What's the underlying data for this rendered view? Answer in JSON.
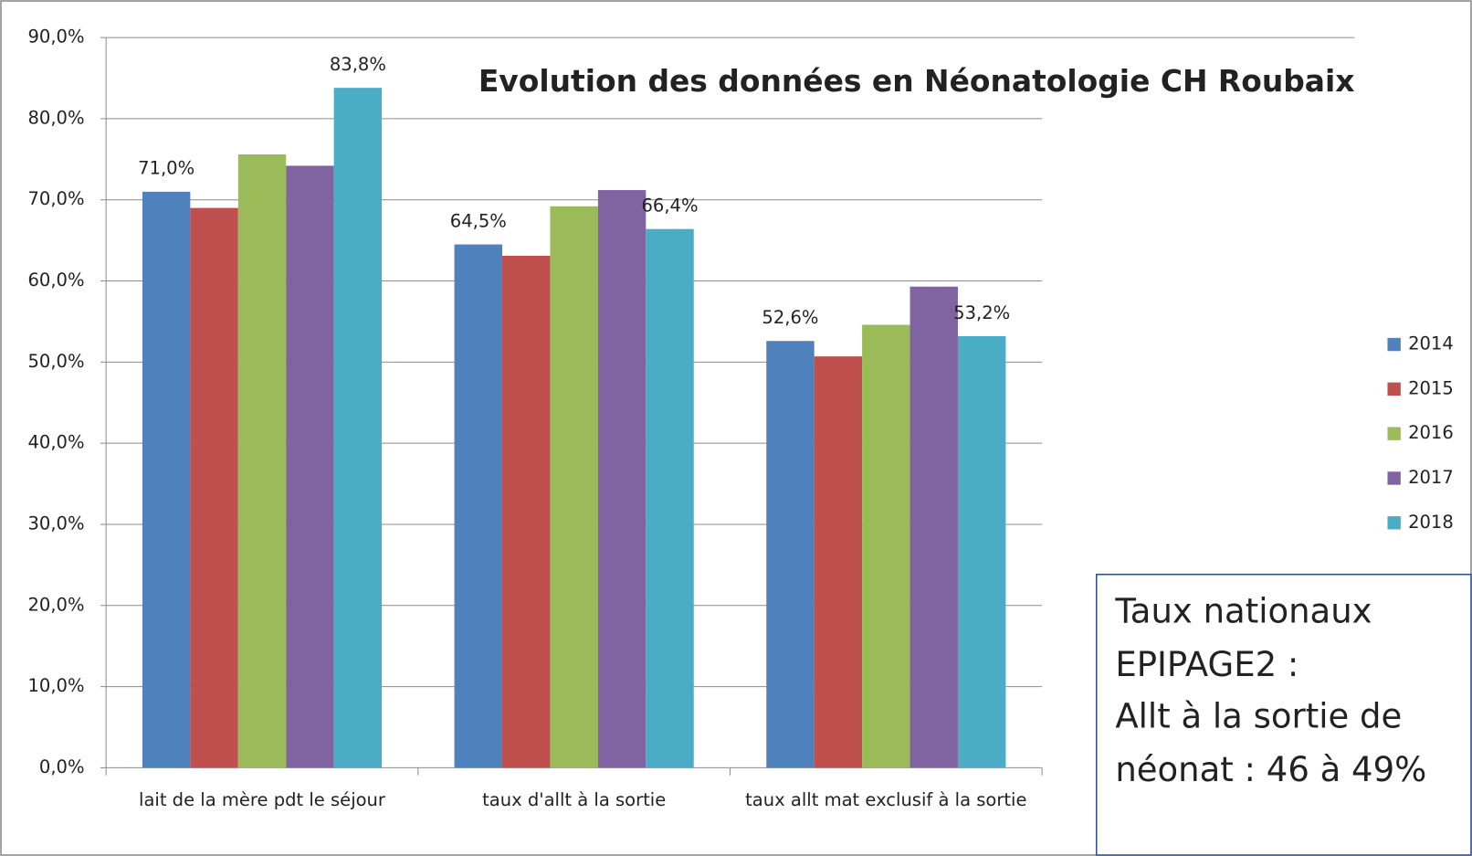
{
  "chart_data": {
    "type": "bar",
    "title": "Evolution des données en Néonatologie CH Roubaix",
    "categories": [
      "lait de la mère pdt le séjour",
      "taux d'allt à la sortie",
      "taux allt mat exclusif à la sortie"
    ],
    "series": [
      {
        "name": "2014",
        "color": "#4f81bd",
        "values": [
          71.0,
          64.5,
          52.6
        ],
        "value_labels": [
          "71,0%",
          "64,5%",
          "52,6%"
        ]
      },
      {
        "name": "2015",
        "color": "#c0504d",
        "values": [
          69.0,
          63.1,
          50.7
        ]
      },
      {
        "name": "2016",
        "color": "#9bbb59",
        "values": [
          75.6,
          69.2,
          54.6
        ]
      },
      {
        "name": "2017",
        "color": "#8064a2",
        "values": [
          74.2,
          71.2,
          59.3
        ]
      },
      {
        "name": "2018",
        "color": "#4bacc6",
        "values": [
          83.8,
          66.4,
          53.2
        ],
        "value_labels": [
          "83,8%",
          "66,4%",
          "53,2%"
        ]
      }
    ],
    "ylim": [
      0,
      90
    ],
    "yticks": [
      {
        "value": 0,
        "label": "0,0%"
      },
      {
        "value": 10,
        "label": "10,0%"
      },
      {
        "value": 20,
        "label": "20,0%"
      },
      {
        "value": 30,
        "label": "30,0%"
      },
      {
        "value": 40,
        "label": "40,0%"
      },
      {
        "value": 50,
        "label": "50,0%"
      },
      {
        "value": 60,
        "label": "60,0%"
      },
      {
        "value": 70,
        "label": "70,0%"
      },
      {
        "value": 80,
        "label": "80,0%"
      },
      {
        "value": 90,
        "label": "90,0%"
      }
    ],
    "grid": true,
    "legend": "right",
    "annotation": [
      "Taux nationaux",
      "EPIPAGE2 :",
      "Allt à la sortie de",
      "néonat : 46 à 49%"
    ]
  }
}
